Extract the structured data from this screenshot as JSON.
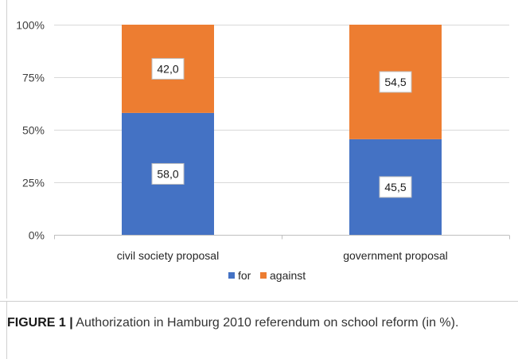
{
  "chart_data": {
    "type": "bar",
    "stacked": true,
    "percent": true,
    "categories": [
      "civil society proposal",
      "government proposal"
    ],
    "series": [
      {
        "name": "for",
        "values": [
          58.0,
          45.5
        ],
        "labels": [
          "58,0",
          "45,5"
        ],
        "color": "#4472c4"
      },
      {
        "name": "against",
        "values": [
          42.0,
          54.5
        ],
        "labels": [
          "42,0",
          "54,5"
        ],
        "color": "#ed7d31"
      }
    ],
    "y_ticks": [
      "0%",
      "25%",
      "50%",
      "75%",
      "100%"
    ],
    "ylim": [
      0,
      100
    ],
    "grid": "horizontal",
    "legend_position": "bottom"
  },
  "caption": {
    "label": "FIGURE 1 |",
    "text": " Authorization in Hamburg 2010 referendum on school reform (in %)."
  }
}
